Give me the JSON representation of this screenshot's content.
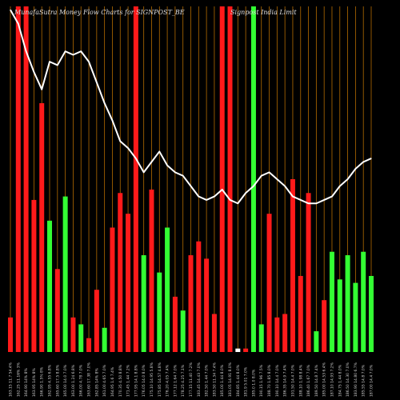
{
  "header": {
    "title_left": "MunafaSutra  Money Flow  Charts for SIGNPOST_BE",
    "title_right": "Signpost India  Limit"
  },
  "colors": {
    "background": "#000000",
    "up": "#33ff33",
    "down": "#ff1a1a",
    "neutral": "#ffffff",
    "grid": "#b36b00",
    "line": "#ffffff"
  },
  "chart_data": {
    "type": "bar",
    "ylim": [
      0,
      100
    ],
    "categories": [
      "163.15 11.7 54.4%",
      "162.25 11.16% 3%",
      "164.90 14% 8%",
      "163.95 14% 8%",
      "166.90 1.5% 8%",
      "162.95 4.55 6.8%",
      "165.60 17.5 8.8%",
      "165.00 14.0 7.0%",
      "163.00 1.24 6.8%",
      "166.00 4.78 7.0%",
      "163.60 17.38 7.0%",
      "162.85 14% 8%",
      "161.00 4.65 7.0%",
      "164.95 1.6 7.4%",
      "170.35 4.50 8.8%",
      "171.45 1.44 7.2%",
      "177.95 14.1 8.8%",
      "176.05 14.0 8.0%",
      "175.10 14.95 5.8%",
      "175.85 14.57 4.8%",
      "176.20 4.05 7.4%",
      "177.12 1.64 7.0%",
      "178.25 4.25 7.1%",
      "177.15 11.40 7.2%",
      "183.45 14.43 7.0%",
      "182.50 1.44 7.0%",
      "183.50 11.34 7.4%",
      "185.00 1.44 8.0%",
      "181.05 14.91 8.0%",
      "184.85 1.44 8.0%",
      "181.9 5.01 7.0%",
      "185.0 1.0 8.0%",
      "190.15 1.96 7.5%",
      "188.70 1.85 8.0%",
      "190.10 14.4 7.0%",
      "186.35 14.9 7.4%",
      "191.50 14.4 7.0%",
      "188.10 1.98 8.4%",
      "186.40 1.67 7.0%",
      "189.50 14.8 7.4%",
      "185.00 14.53 6.4%",
      "187.10 14.93 7.2%",
      "184.75 1.44 8.0%",
      "186.50 14.30 7.0%",
      "183.90 14.80 6.7%",
      "185.55 14.8 7.0%",
      "187.00 14.4 7.0%"
    ],
    "series": [
      {
        "values": [
          10,
          100,
          100,
          44,
          72,
          38,
          24,
          45,
          10,
          8,
          4,
          18,
          7,
          36,
          46,
          40,
          100,
          28,
          47,
          23,
          36,
          16,
          12,
          28,
          32,
          27,
          11,
          100,
          100,
          1,
          1,
          100,
          8,
          40,
          10,
          11,
          50,
          22,
          46,
          6,
          15,
          29,
          21,
          28,
          20,
          29,
          22
        ],
        "colors": [
          "down",
          "down",
          "down",
          "down",
          "down",
          "up",
          "down",
          "up",
          "down",
          "up",
          "down",
          "down",
          "up",
          "down",
          "down",
          "down",
          "down",
          "up",
          "down",
          "up",
          "up",
          "down",
          "up",
          "down",
          "down",
          "down",
          "down",
          "down",
          "down",
          "neutral",
          "down",
          "up",
          "up",
          "down",
          "down",
          "down",
          "down",
          "down",
          "down",
          "up",
          "down",
          "up",
          "up",
          "up",
          "up",
          "up",
          "up"
        ]
      },
      {
        "name": "",
        "type": "line",
        "values": [
          99,
          95,
          87,
          81,
          76,
          84,
          83,
          87,
          86,
          87,
          84,
          78,
          72,
          67,
          61,
          59,
          56,
          52,
          55,
          58,
          54,
          52,
          51,
          48,
          45,
          44,
          45,
          47,
          44,
          43,
          46,
          48,
          51,
          52,
          50,
          48,
          45,
          44,
          43,
          43,
          44,
          45,
          48,
          50,
          53,
          55,
          56
        ]
      }
    ]
  }
}
